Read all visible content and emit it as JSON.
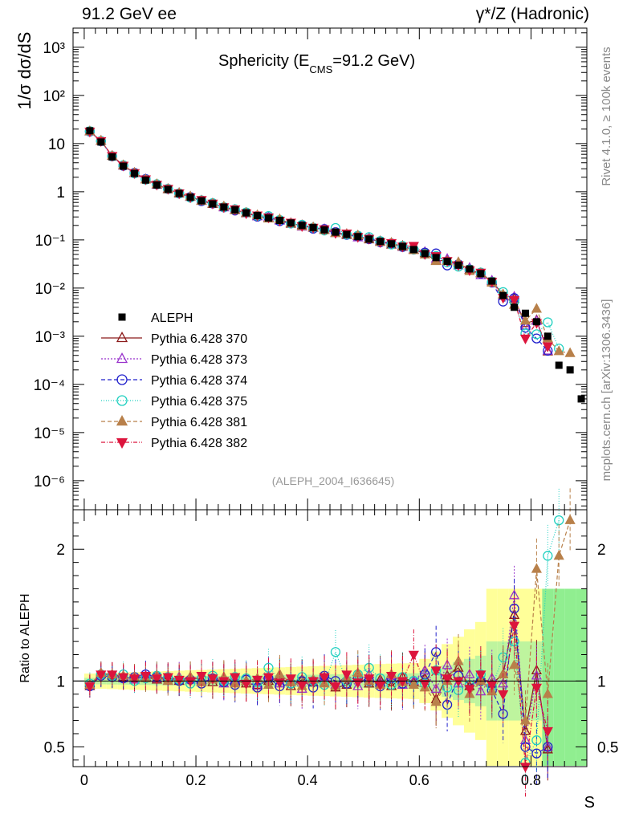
{
  "header": {
    "left": "91.2 GeV ee",
    "right": "γ*/Z (Hadronic)"
  },
  "side_text": {
    "rivet": "Rivet 4.1.0, ≥ 100k events",
    "mcplots": "mcplots.cern.ch [arXiv:1306.3436]"
  },
  "chart_data": {
    "type": "scatter",
    "title": "Sphericity (E_CMS=91.2 GeV)",
    "title_main": "Sphericity (E",
    "title_sub": "CMS",
    "title_end": "=91.2 GeV)",
    "ylabel": "1/σ  dσ/dS",
    "xlabel": "S",
    "ratio_ylabel": "Ratio to ALEPH",
    "analysis_tag": "(ALEPH_2004_I636645)",
    "xlim": [
      -0.02,
      0.9
    ],
    "ylim": [
      2.5e-07,
      2500
    ],
    "ratio_ylim": [
      0.35,
      2.3
    ],
    "x_ticks": [
      "0",
      "0.2",
      "0.4",
      "0.6",
      "0.8"
    ],
    "y_ticks": [
      "10³",
      "10²",
      "10",
      "1",
      "10⁻¹",
      "10⁻²",
      "10⁻³",
      "10⁻⁴",
      "10⁻⁵",
      "10⁻⁶"
    ],
    "ratio_ticks": [
      "0.5",
      "1",
      "2"
    ],
    "x": [
      0.01,
      0.03,
      0.05,
      0.07,
      0.09,
      0.11,
      0.13,
      0.15,
      0.17,
      0.19,
      0.21,
      0.23,
      0.25,
      0.27,
      0.29,
      0.31,
      0.33,
      0.35,
      0.37,
      0.39,
      0.41,
      0.43,
      0.45,
      0.47,
      0.49,
      0.51,
      0.53,
      0.55,
      0.57,
      0.59,
      0.61,
      0.63,
      0.65,
      0.67,
      0.69,
      0.71,
      0.73,
      0.75,
      0.77,
      0.79,
      0.81,
      0.83,
      0.85,
      0.87,
      0.89
    ],
    "data": {
      "name": "ALEPH",
      "values": [
        18.5,
        10.8,
        5.3,
        3.4,
        2.4,
        1.75,
        1.38,
        1.12,
        0.92,
        0.77,
        0.65,
        0.56,
        0.48,
        0.42,
        0.365,
        0.32,
        0.285,
        0.255,
        0.225,
        0.2,
        0.18,
        0.162,
        0.145,
        0.13,
        0.117,
        0.104,
        0.093,
        0.083,
        0.073,
        0.063,
        0.052,
        0.043,
        0.036,
        0.03,
        0.025,
        0.02,
        0.014,
        0.007,
        0.004,
        0.003,
        0.002,
        0.001,
        0.00025,
        0.0002,
        5e-05
      ]
    },
    "legend_position": "middle-left",
    "series": [
      {
        "name": "Pythia 6.428 370",
        "color": "#8b1a1a",
        "marker": "triangle-open",
        "dash": "",
        "ratio": [
          0.96,
          1.05,
          1.04,
          1.03,
          1.02,
          1.03,
          1.01,
          1.02,
          1.0,
          1.03,
          1.01,
          0.99,
          1.02,
          1.0,
          0.98,
          0.97,
          1.0,
          1.03,
          0.96,
          1.01,
          0.99,
          1.02,
          0.95,
          0.97,
          1.02,
          0.98,
          1.01,
          0.96,
          1.03,
          0.99,
          1.02,
          0.86,
          1.04,
          1.1,
          0.96,
          1.02,
          0.98,
          1.05,
          1.5,
          0.62,
          1.08,
          0.48,
          null,
          null,
          null
        ]
      },
      {
        "name": "Pythia 6.428 373",
        "color": "#9932cc",
        "marker": "triangle-open",
        "dash": "2,2",
        "ratio": [
          0.97,
          1.06,
          1.05,
          1.02,
          1.01,
          1.04,
          1.02,
          1.0,
          1.03,
          1.01,
          0.99,
          1.02,
          0.98,
          1.01,
          1.0,
          0.96,
          1.04,
          0.98,
          1.0,
          0.94,
          1.01,
          1.03,
          0.97,
          1.02,
          0.96,
          1.05,
          0.99,
          1.04,
          0.97,
          1.0,
          1.08,
          0.94,
          1.12,
          0.98,
          1.05,
          0.92,
          1.02,
          0.98,
          1.65,
          0.55,
          1.04,
          0.5,
          null,
          null,
          null
        ]
      },
      {
        "name": "Pythia 6.428 374",
        "color": "#2222cc",
        "marker": "circle-open",
        "dash": "5,3",
        "ratio": [
          0.96,
          1.04,
          1.03,
          1.02,
          1.03,
          1.05,
          1.03,
          1.02,
          1.0,
          1.01,
          0.98,
          1.02,
          0.99,
          0.97,
          1.01,
          0.95,
          1.02,
          0.96,
          0.98,
          1.0,
          0.95,
          1.04,
          1.0,
          0.98,
          1.02,
          1.0,
          0.96,
          1.02,
          0.98,
          1.0,
          1.05,
          1.22,
          0.82,
          1.04,
          0.97,
          1.0,
          0.93,
          0.75,
          1.55,
          0.5,
          0.45,
          0.5,
          null,
          null,
          null
        ]
      },
      {
        "name": "Pythia 6.428 375",
        "color": "#20d0c0",
        "marker": "circle-open",
        "dash": "1,2",
        "ratio": [
          0.98,
          1.05,
          1.04,
          1.05,
          1.0,
          1.02,
          1.04,
          1.03,
          1.01,
          0.98,
          1.02,
          1.04,
          1.0,
          1.03,
          1.02,
          0.99,
          1.1,
          1.02,
          0.98,
          1.03,
          1.0,
          0.97,
          1.22,
          1.0,
          1.05,
          1.1,
          1.02,
          0.97,
          1.03,
          1.0,
          0.98,
          1.08,
          0.95,
          0.93,
          0.97,
          1.05,
          0.96,
          1.18,
          1.3,
          0.38,
          0.55,
          1.95,
          2.22,
          null,
          null
        ]
      },
      {
        "name": "Pythia 6.428 381",
        "color": "#b8804a",
        "marker": "triangle-filled",
        "dash": "5,3",
        "ratio": [
          0.97,
          1.06,
          1.05,
          1.04,
          1.03,
          1.02,
          1.04,
          1.0,
          1.02,
          1.03,
          0.99,
          1.01,
          1.03,
          0.98,
          1.0,
          1.02,
          0.97,
          1.05,
          0.99,
          0.96,
          1.01,
          0.98,
          0.96,
          1.02,
          1.06,
          1.0,
          0.97,
          1.05,
          0.99,
          0.97,
          0.95,
          0.84,
          1.0,
          1.15,
          0.9,
          1.0,
          0.92,
          1.05,
          1.12,
          0.7,
          1.85,
          0.9,
          1.95,
          2.22,
          null
        ]
      },
      {
        "name": "Pythia 6.428 382",
        "color": "#dc143c",
        "marker": "triangle-down-filled",
        "dash": "5,2,1,2",
        "ratio": [
          0.96,
          1.05,
          1.05,
          1.03,
          1.02,
          1.04,
          1.02,
          1.03,
          1.01,
          1.0,
          1.04,
          1.02,
          1.0,
          1.03,
          0.98,
          1.01,
          1.03,
          0.99,
          1.02,
          0.97,
          1.0,
          1.03,
          0.96,
          1.05,
          0.99,
          1.02,
          0.97,
          1.04,
          1.0,
          1.2,
          0.98,
          1.08,
          1.02,
          1.0,
          0.94,
          1.05,
          0.97,
          0.9,
          1.42,
          0.3,
          0.95,
          0.62,
          null,
          null,
          null
        ]
      }
    ]
  }
}
